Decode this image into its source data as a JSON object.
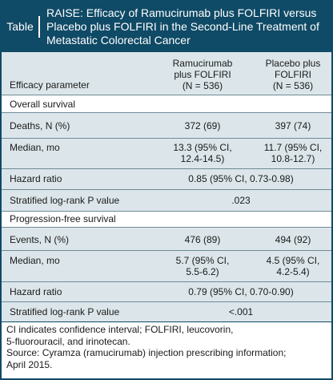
{
  "table": {
    "tag": "Table",
    "title_lines": [
      "RAISE: Efficacy of Ramucirumab plus FOLFIRI versus",
      "Placebo plus FOLFIRI in the Second-Line Treatment of",
      "Metastatic Colorectal Cancer"
    ],
    "header": {
      "parameter": "Efficacy parameter",
      "col_a": [
        "Ramucirumab",
        "plus FOLFIRI",
        "(N = 536)"
      ],
      "col_b": [
        "Placebo plus",
        "FOLFIRI",
        "(N = 536)"
      ]
    },
    "sections": [
      {
        "title": "Overall survival",
        "rows": [
          {
            "label": "Deaths, N (%)",
            "a": [
              "372 (69)"
            ],
            "b": [
              "397 (74)"
            ]
          },
          {
            "label": "Median, mo",
            "a": [
              "13.3 (95% CI,",
              "12.4-14.5)"
            ],
            "b": [
              "11.7 (95% CI,",
              "10.8-12.7)"
            ]
          },
          {
            "label": "Hazard ratio",
            "span": "0.85 (95% CI, 0.73-0.98)"
          },
          {
            "label": "Stratified log-rank P value",
            "span": ".023"
          }
        ]
      },
      {
        "title": "Progression-free survival",
        "rows": [
          {
            "label": "Events, N (%)",
            "a": [
              "476 (89)"
            ],
            "b": [
              "494 (92)"
            ]
          },
          {
            "label": "Median, mo",
            "a": [
              "5.7 (95% CI,",
              "5.5-6.2)"
            ],
            "b": [
              "4.5 (95% CI,",
              "4.2-5.4)"
            ]
          },
          {
            "label": "Hazard ratio",
            "span": "0.79 (95% CI, 0.70-0.90)"
          },
          {
            "label": "Stratified log-rank P value",
            "span": "<.001"
          }
        ]
      }
    ],
    "footnote_lines": [
      "CI indicates confidence interval; FOLFIRI, leucovorin,",
      "5-fluorouracil, and irinotecan.",
      "Source: Cyramza (ramucirumab) injection prescribing information;",
      "April 2015."
    ],
    "colors": {
      "header_bg": "#0f4a66",
      "band_bg": "#dce6ea",
      "border": "#0f4a66"
    }
  }
}
